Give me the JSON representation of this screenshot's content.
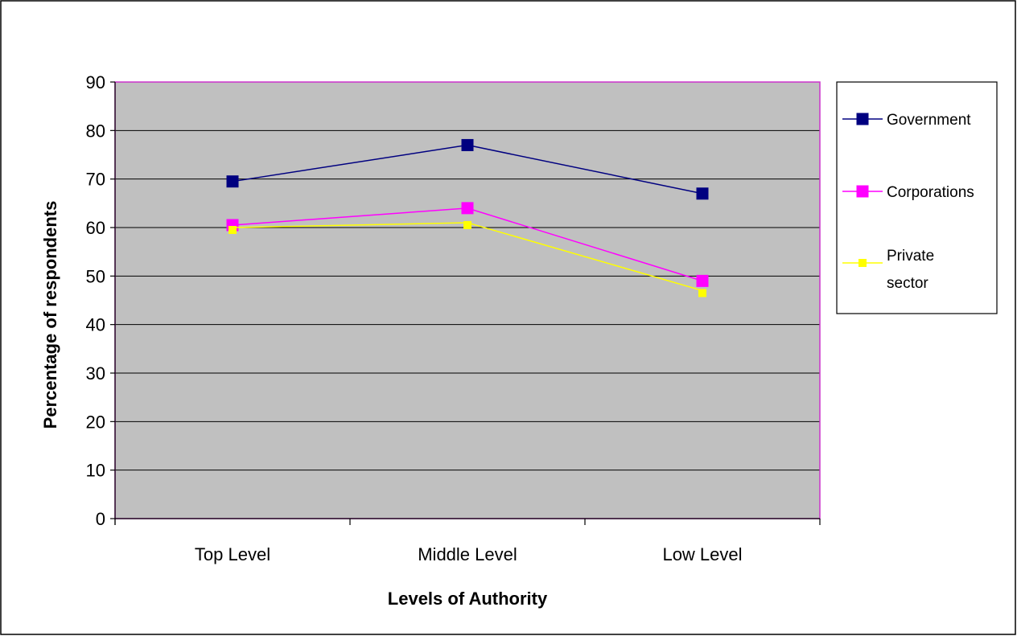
{
  "chart_data": {
    "type": "line",
    "categories": [
      "Top Level",
      "Middle Level",
      "Low Level"
    ],
    "series": [
      {
        "name": "Government",
        "values": [
          69.5,
          77,
          67
        ],
        "color": "#000080",
        "marker": "square-large"
      },
      {
        "name": "Corporations",
        "values": [
          60.5,
          64,
          49
        ],
        "color": "#ff00ff",
        "marker": "square-large"
      },
      {
        "name": "Private sector",
        "values": [
          60,
          61,
          47
        ],
        "color": "#ffff00",
        "marker": "square-small"
      }
    ],
    "legend_lines": {
      "Government": [
        "Government"
      ],
      "Corporations": [
        "Corporations"
      ],
      "Private sector": [
        "Private",
        "sector"
      ]
    },
    "xlabel": "Levels of Authority",
    "ylabel": "Percentage of respondents",
    "ylim": [
      0,
      90
    ],
    "yticks": [
      0,
      10,
      20,
      30,
      40,
      50,
      60,
      70,
      80,
      90
    ],
    "grid": true,
    "legend_position": "right",
    "plot_background": "#c0c0c0",
    "plot_border_color": "#cc33cc",
    "gridline_color": "#000000"
  }
}
